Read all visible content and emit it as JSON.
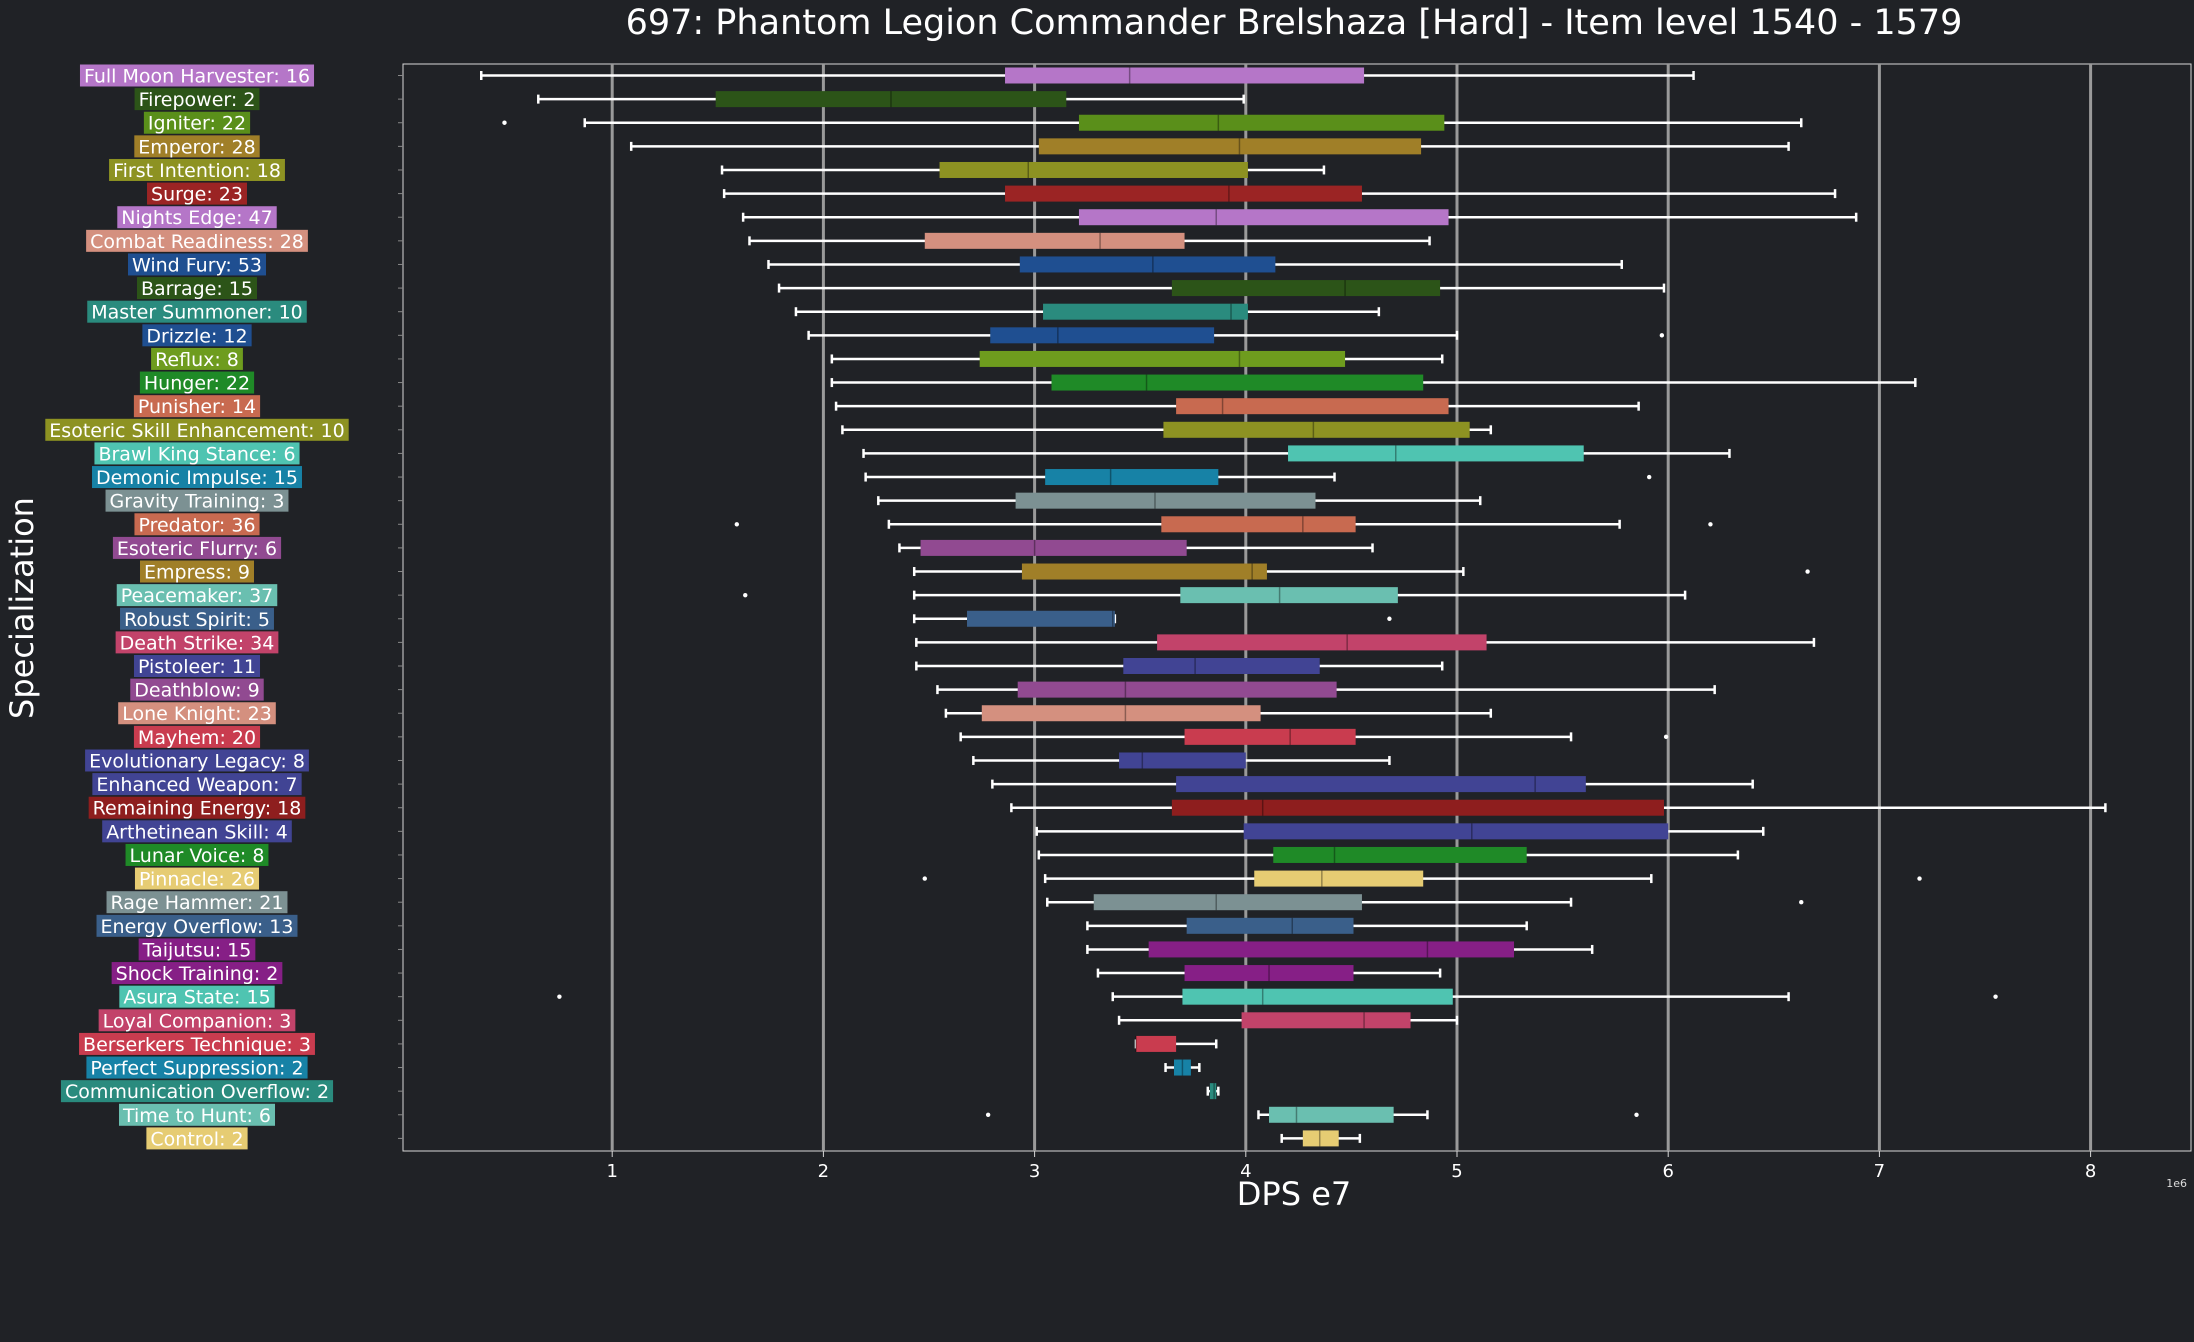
{
  "chart_data": {
    "type": "box",
    "title": "697: Phantom Legion Commander Brelshaza [Hard] - Item level 1540 - 1579",
    "xlabel": "DPS e7",
    "ylabel": "Specialization",
    "offset_text": "1e6",
    "xlim": [
      0,
      8.45
    ],
    "xticks": [
      1,
      2,
      3,
      4,
      5,
      6,
      7,
      8
    ],
    "xtick_labels": [
      "1",
      "2",
      "3",
      "4",
      "5",
      "6",
      "7",
      "8"
    ],
    "series": [
      {
        "label": "Full Moon Harvester: 16",
        "color": "#b576c8",
        "whislo": 0.38,
        "q1": 2.86,
        "med": 3.45,
        "q3": 4.56,
        "whishi": 6.12,
        "fliers": []
      },
      {
        "label": "Firepower: 2",
        "color": "#2c5418",
        "whislo": 0.65,
        "q1": 1.49,
        "med": 2.32,
        "q3": 3.15,
        "whishi": 3.99,
        "fliers": []
      },
      {
        "label": "Igniter: 22",
        "color": "#5a8f1a",
        "whislo": 0.87,
        "q1": 3.21,
        "med": 3.87,
        "q3": 4.94,
        "whishi": 6.63,
        "fliers": [
          0.49
        ]
      },
      {
        "label": "Emperor: 28",
        "color": "#a07f28",
        "whislo": 1.09,
        "q1": 3.02,
        "med": 3.97,
        "q3": 4.83,
        "whishi": 6.57,
        "fliers": []
      },
      {
        "label": "First Intention: 18",
        "color": "#8d9222",
        "whislo": 1.52,
        "q1": 2.55,
        "med": 2.97,
        "q3": 4.01,
        "whishi": 4.37,
        "fliers": []
      },
      {
        "label": "Surge: 23",
        "color": "#9b2424",
        "whislo": 1.53,
        "q1": 2.86,
        "med": 3.92,
        "q3": 4.55,
        "whishi": 6.79,
        "fliers": []
      },
      {
        "label": "Nights Edge: 47",
        "color": "#b576c8",
        "whislo": 1.62,
        "q1": 3.21,
        "med": 3.86,
        "q3": 4.96,
        "whishi": 6.89,
        "fliers": []
      },
      {
        "label": "Combat Readiness: 28",
        "color": "#d4907f",
        "whislo": 1.65,
        "q1": 2.48,
        "med": 3.31,
        "q3": 3.71,
        "whishi": 4.87,
        "fliers": []
      },
      {
        "label": "Wind Fury: 53",
        "color": "#1f4f91",
        "whislo": 1.74,
        "q1": 2.93,
        "med": 3.56,
        "q3": 4.14,
        "whishi": 5.78,
        "fliers": []
      },
      {
        "label": "Barrage: 15",
        "color": "#2c5418",
        "whislo": 1.79,
        "q1": 3.65,
        "med": 4.47,
        "q3": 4.92,
        "whishi": 5.98,
        "fliers": []
      },
      {
        "label": "Master Summoner: 10",
        "color": "#2a8b7e",
        "whislo": 1.87,
        "q1": 3.04,
        "med": 3.93,
        "q3": 4.01,
        "whishi": 4.63,
        "fliers": []
      },
      {
        "label": "Drizzle: 12",
        "color": "#1f4f91",
        "whislo": 1.93,
        "q1": 2.79,
        "med": 3.11,
        "q3": 3.85,
        "whishi": 5.0,
        "fliers": [
          5.97
        ]
      },
      {
        "label": "Reflux: 8",
        "color": "#6e9c1e",
        "whislo": 2.04,
        "q1": 2.74,
        "med": 3.97,
        "q3": 4.47,
        "whishi": 4.93,
        "fliers": []
      },
      {
        "label": "Hunger: 22",
        "color": "#1f8a27",
        "whislo": 2.04,
        "q1": 3.08,
        "med": 3.53,
        "q3": 4.84,
        "whishi": 7.17,
        "fliers": []
      },
      {
        "label": "Punisher: 14",
        "color": "#c86a50",
        "whislo": 2.06,
        "q1": 3.67,
        "med": 3.89,
        "q3": 4.96,
        "whishi": 5.86,
        "fliers": []
      },
      {
        "label": "Esoteric Skill Enhancement: 10",
        "color": "#8d9222",
        "whislo": 2.09,
        "q1": 3.61,
        "med": 4.32,
        "q3": 5.06,
        "whishi": 5.16,
        "fliers": []
      },
      {
        "label": "Brawl King Stance: 6",
        "color": "#4fc4b1",
        "whislo": 2.19,
        "q1": 4.2,
        "med": 4.71,
        "q3": 5.6,
        "whishi": 6.29,
        "fliers": []
      },
      {
        "label": "Demonic Impulse: 15",
        "color": "#1782a6",
        "whislo": 2.2,
        "q1": 3.05,
        "med": 3.36,
        "q3": 3.87,
        "whishi": 4.42,
        "fliers": [
          5.91
        ]
      },
      {
        "label": "Gravity Training: 3",
        "color": "#7c9193",
        "whislo": 2.26,
        "q1": 2.91,
        "med": 3.57,
        "q3": 4.33,
        "whishi": 5.11,
        "fliers": []
      },
      {
        "label": "Predator: 36",
        "color": "#c86a50",
        "whislo": 2.31,
        "q1": 3.6,
        "med": 4.27,
        "q3": 4.52,
        "whishi": 5.77,
        "fliers": [
          1.59,
          6.2
        ]
      },
      {
        "label": "Esoteric Flurry: 6",
        "color": "#914a91",
        "whislo": 2.36,
        "q1": 2.46,
        "med": 3.0,
        "q3": 3.72,
        "whishi": 4.6,
        "fliers": []
      },
      {
        "label": "Empress: 9",
        "color": "#a07f28",
        "whislo": 2.43,
        "q1": 2.94,
        "med": 4.03,
        "q3": 4.1,
        "whishi": 5.03,
        "fliers": [
          6.66
        ]
      },
      {
        "label": "Peacemaker: 37",
        "color": "#6abfb0",
        "whislo": 2.43,
        "q1": 3.69,
        "med": 4.16,
        "q3": 4.72,
        "whishi": 6.08,
        "fliers": [
          1.63
        ]
      },
      {
        "label": "Robust Spirit: 5",
        "color": "#3a5f8a",
        "whislo": 2.43,
        "q1": 2.68,
        "med": 3.37,
        "q3": 3.38,
        "whishi": 3.38,
        "fliers": [
          4.68
        ]
      },
      {
        "label": "Death Strike: 34",
        "color": "#c2436a",
        "whislo": 2.44,
        "q1": 3.58,
        "med": 4.48,
        "q3": 5.14,
        "whishi": 6.69,
        "fliers": []
      },
      {
        "label": "Pistoleer: 11",
        "color": "#414494",
        "whislo": 2.44,
        "q1": 3.42,
        "med": 3.76,
        "q3": 4.35,
        "whishi": 4.93,
        "fliers": []
      },
      {
        "label": "Deathblow: 9",
        "color": "#914a91",
        "whislo": 2.54,
        "q1": 2.92,
        "med": 3.43,
        "q3": 4.43,
        "whishi": 6.22,
        "fliers": []
      },
      {
        "label": "Lone Knight: 23",
        "color": "#d4907f",
        "whislo": 2.58,
        "q1": 2.75,
        "med": 3.43,
        "q3": 4.07,
        "whishi": 5.16,
        "fliers": []
      },
      {
        "label": "Mayhem: 20",
        "color": "#c93c4f",
        "whislo": 2.65,
        "q1": 3.71,
        "med": 4.21,
        "q3": 4.52,
        "whishi": 5.54,
        "fliers": [
          5.99
        ]
      },
      {
        "label": "Evolutionary Legacy: 8",
        "color": "#414494",
        "whislo": 2.71,
        "q1": 3.4,
        "med": 3.51,
        "q3": 4.0,
        "whishi": 4.68,
        "fliers": []
      },
      {
        "label": "Enhanced Weapon: 7",
        "color": "#414494",
        "whislo": 2.8,
        "q1": 3.67,
        "med": 5.37,
        "q3": 5.61,
        "whishi": 6.4,
        "fliers": []
      },
      {
        "label": "Remaining Energy: 18",
        "color": "#8e1e1e",
        "whislo": 2.89,
        "q1": 3.65,
        "med": 4.08,
        "q3": 5.98,
        "whishi": 8.07,
        "fliers": []
      },
      {
        "label": "Arthetinean Skill: 4",
        "color": "#414494",
        "whislo": 3.01,
        "q1": 3.99,
        "med": 5.07,
        "q3": 6.0,
        "whishi": 6.45,
        "fliers": []
      },
      {
        "label": "Lunar Voice: 8",
        "color": "#1f8a27",
        "whislo": 3.02,
        "q1": 4.13,
        "med": 4.42,
        "q3": 5.33,
        "whishi": 6.33,
        "fliers": []
      },
      {
        "label": "Pinnacle: 26",
        "color": "#e6cc73",
        "whislo": 3.05,
        "q1": 4.04,
        "med": 4.36,
        "q3": 4.84,
        "whishi": 5.92,
        "fliers": [
          2.48,
          7.19
        ]
      },
      {
        "label": "Rage Hammer: 21",
        "color": "#7c9193",
        "whislo": 3.06,
        "q1": 3.28,
        "med": 3.86,
        "q3": 4.55,
        "whishi": 5.54,
        "fliers": [
          6.63
        ]
      },
      {
        "label": "Energy Overflow: 13",
        "color": "#3a5f8a",
        "whislo": 3.25,
        "q1": 3.72,
        "med": 4.22,
        "q3": 4.51,
        "whishi": 5.33,
        "fliers": []
      },
      {
        "label": "Taijutsu: 15",
        "color": "#861f86",
        "whislo": 3.25,
        "q1": 3.54,
        "med": 4.86,
        "q3": 5.27,
        "whishi": 5.64,
        "fliers": []
      },
      {
        "label": "Shock Training: 2",
        "color": "#861f86",
        "whislo": 3.3,
        "q1": 3.71,
        "med": 4.11,
        "q3": 4.51,
        "whishi": 4.92,
        "fliers": []
      },
      {
        "label": "Asura State: 15",
        "color": "#4fc4b1",
        "whislo": 3.37,
        "q1": 3.7,
        "med": 4.08,
        "q3": 4.98,
        "whishi": 6.57,
        "fliers": [
          0.75,
          7.55
        ]
      },
      {
        "label": "Loyal Companion: 3",
        "color": "#c2436a",
        "whislo": 3.4,
        "q1": 3.98,
        "med": 4.56,
        "q3": 4.78,
        "whishi": 5.0,
        "fliers": []
      },
      {
        "label": "Berserkers Technique: 3",
        "color": "#c93c4f",
        "whislo": 3.48,
        "q1": 3.48,
        "med": 3.48,
        "q3": 3.67,
        "whishi": 3.86,
        "fliers": []
      },
      {
        "label": "Perfect Suppression: 2",
        "color": "#1782a6",
        "whislo": 3.62,
        "q1": 3.66,
        "med": 3.7,
        "q3": 3.74,
        "whishi": 3.78,
        "fliers": []
      },
      {
        "label": "Communication Overflow: 2",
        "color": "#2a8b7e",
        "whislo": 3.82,
        "q1": 3.83,
        "med": 3.85,
        "q3": 3.86,
        "whishi": 3.87,
        "fliers": []
      },
      {
        "label": "Time to Hunt: 6",
        "color": "#6abfb0",
        "whislo": 4.06,
        "q1": 4.11,
        "med": 4.24,
        "q3": 4.7,
        "whishi": 4.86,
        "fliers": [
          2.78,
          5.85
        ]
      },
      {
        "label": "Control: 2",
        "color": "#e6cc73",
        "whislo": 4.17,
        "q1": 4.27,
        "med": 4.35,
        "q3": 4.44,
        "whishi": 4.54,
        "fliers": []
      }
    ]
  }
}
